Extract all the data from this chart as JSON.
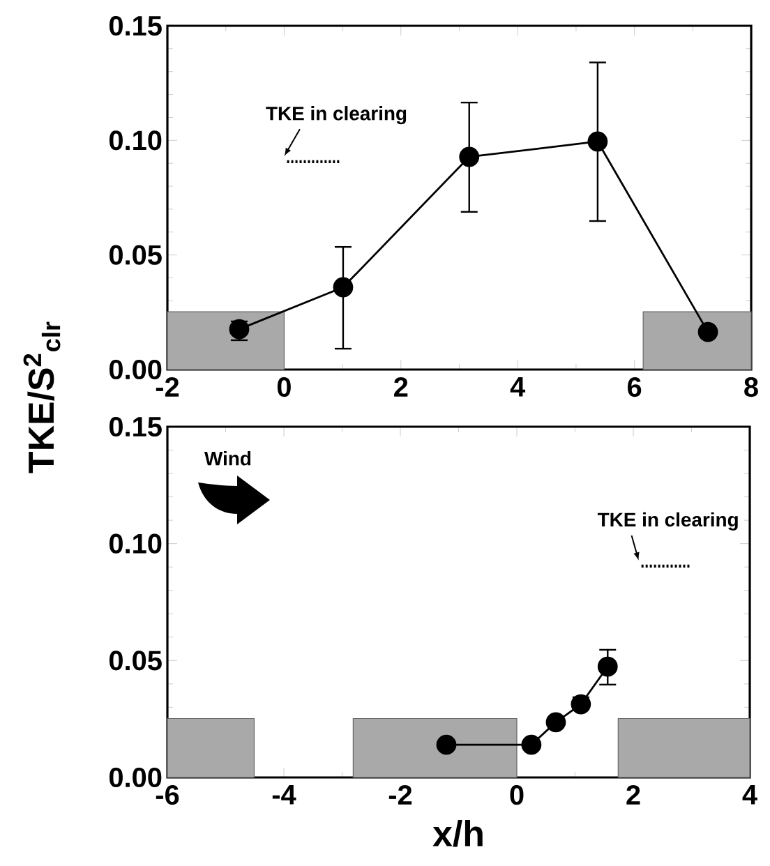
{
  "chart_data": [
    {
      "type": "line",
      "ylabel": "TKE/S$^{2}$$_{clr}$",
      "xlim": [
        -2,
        8
      ],
      "ylim": [
        0,
        0.15
      ],
      "xticks": [
        -2,
        0,
        2,
        4,
        6,
        8
      ],
      "yticks": [
        {
          "value": 0,
          "label": "0.00"
        },
        {
          "value": 0.05,
          "label": "0.05"
        },
        {
          "value": 0.1,
          "label": "0.10"
        },
        {
          "value": 0.15,
          "label": "0.15"
        }
      ],
      "series": [
        {
          "color": "#000000",
          "marker": "circle",
          "line_style": "solid",
          "x": [
            -0.77,
            1.01,
            3.17,
            5.37,
            7.26
          ],
          "values": [
            0.0176,
            0.0359,
            0.0928,
            0.0995,
            0.0164
          ],
          "errors": [
            [
              0.0128,
              0.021
            ],
            [
              0.0091,
              0.0535
            ],
            [
              0.0688,
              0.1165
            ],
            [
              0.0648,
              0.134
            ],
            null
          ]
        },
        {
          "color": "#000000",
          "marker": "none",
          "line_style": "dotted",
          "x": [
            0.05,
            0.97
          ],
          "values": [
            0.0907,
            0.0907
          ]
        }
      ],
      "bands": [
        {
          "axis": "x",
          "from": -2,
          "to": 0,
          "color": "#a9a9a9"
        },
        {
          "axis": "x",
          "from": 6.15,
          "to": 8,
          "color": "#a9a9a9"
        }
      ],
      "annotations": [
        "TKE in clearing"
      ]
    },
    {
      "type": "line",
      "xlabel": "x/h",
      "xlim": [
        -6,
        4
      ],
      "ylim": [
        0,
        0.15
      ],
      "xticks": [
        -6,
        -4,
        -2,
        0,
        2,
        4
      ],
      "yticks": [
        {
          "value": 0,
          "label": "0.00"
        },
        {
          "value": 0.05,
          "label": "0.05"
        },
        {
          "value": 0.1,
          "label": "0.10"
        },
        {
          "value": 0.15,
          "label": "0.15"
        }
      ],
      "series": [
        {
          "color": "#000000",
          "marker": "circle",
          "line_style": "solid",
          "x": [
            -1.21,
            0.25,
            0.67,
            1.1,
            1.56
          ],
          "values": [
            0.014,
            0.014,
            0.0236,
            0.0313,
            0.0474
          ],
          "errors": [
            null,
            null,
            null,
            [
              0.0313,
              0.0343
            ],
            [
              0.0397,
              0.0546
            ]
          ]
        },
        {
          "color": "#000000",
          "marker": "none",
          "line_style": "dotted",
          "x": [
            2.14,
            2.98
          ],
          "values": [
            0.0904,
            0.0904
          ]
        }
      ],
      "bands": [
        {
          "axis": "x",
          "from": -6,
          "to": -4.51,
          "color": "#a9a9a9"
        },
        {
          "axis": "x",
          "from": -2.81,
          "to": 0,
          "color": "#a9a9a9"
        },
        {
          "axis": "x",
          "from": 1.74,
          "to": 4,
          "color": "#a9a9a9"
        }
      ],
      "annotations": [
        "Wind",
        "TKE in clearing"
      ]
    }
  ]
}
